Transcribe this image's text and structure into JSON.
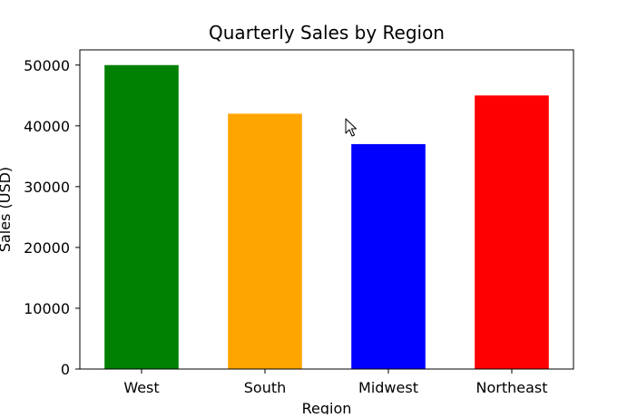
{
  "chart_data": {
    "type": "bar",
    "title": "Quarterly Sales by Region",
    "xlabel": "Region",
    "ylabel": "Sales (USD)",
    "categories": [
      "West",
      "South",
      "Midwest",
      "Northeast"
    ],
    "values": [
      50000,
      42000,
      37000,
      45000
    ],
    "colors": [
      "#008000",
      "#FFA500",
      "#0000FF",
      "#FF0000"
    ],
    "ylim": [
      0,
      52500
    ],
    "yticks": [
      0,
      10000,
      20000,
      30000,
      40000,
      50000
    ],
    "grid": false,
    "legend": "none"
  },
  "cursor": {
    "icon": "arrow-cursor-icon"
  }
}
